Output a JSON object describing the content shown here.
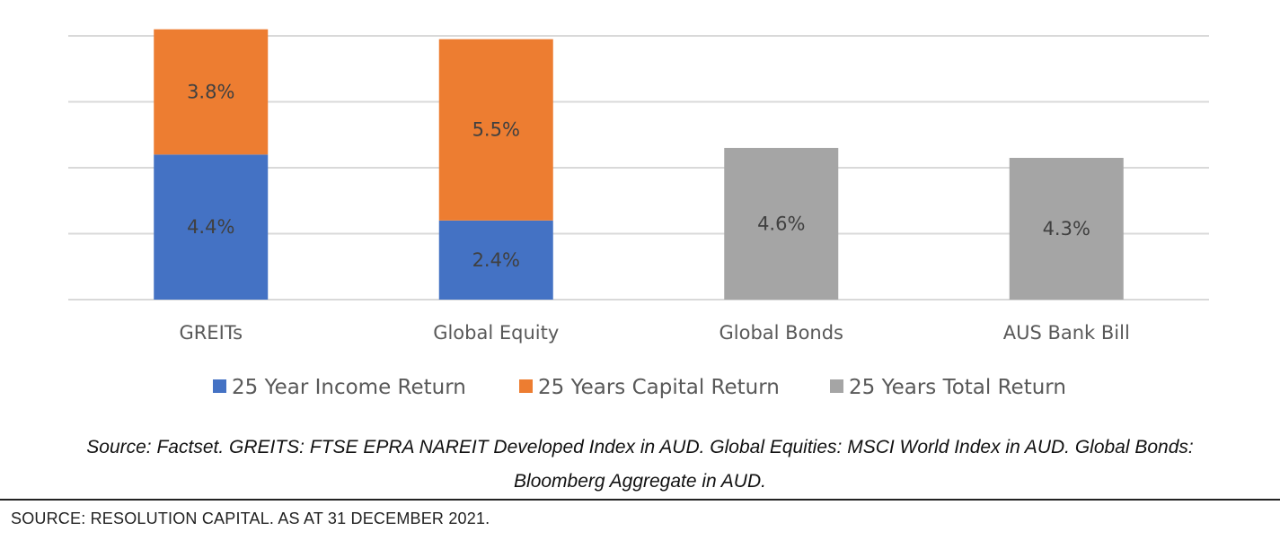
{
  "chart_data": {
    "type": "bar",
    "stacked": true,
    "categories": [
      "GREITs",
      "Global Equity",
      "Global Bonds",
      "AUS Bank Bill"
    ],
    "series": [
      {
        "name": "25 Year Income Return",
        "color": "#4472C4",
        "values": [
          4.4,
          2.4,
          null,
          null
        ],
        "labels": [
          "4.4%",
          "2.4%",
          "",
          ""
        ]
      },
      {
        "name": "25 Years Capital Return",
        "color": "#ED7D31",
        "values": [
          3.8,
          5.5,
          null,
          null
        ],
        "labels": [
          "3.8%",
          "5.5%",
          "",
          ""
        ]
      },
      {
        "name": "25 Years Total Return",
        "color": "#A5A5A5",
        "values": [
          null,
          null,
          4.6,
          4.3
        ],
        "labels": [
          "",
          "",
          "4.6%",
          "4.3%"
        ]
      }
    ],
    "ylim": [
      0,
      8
    ],
    "gridlines": [
      0,
      2,
      4,
      6,
      8
    ],
    "grid": true,
    "legend_position": "bottom",
    "title": "",
    "xlabel": "",
    "ylabel": ""
  },
  "caption": {
    "line1": "Source: Factset. GREITS: FTSE EPRA NAREIT Developed Index in AUD. Global Equities: MSCI World Index in AUD. Global Bonds:",
    "line2": "Bloomberg Aggregate in AUD."
  },
  "footer": {
    "source": "SOURCE: RESOLUTION CAPITAL. AS AT 31 DECEMBER 2021."
  }
}
